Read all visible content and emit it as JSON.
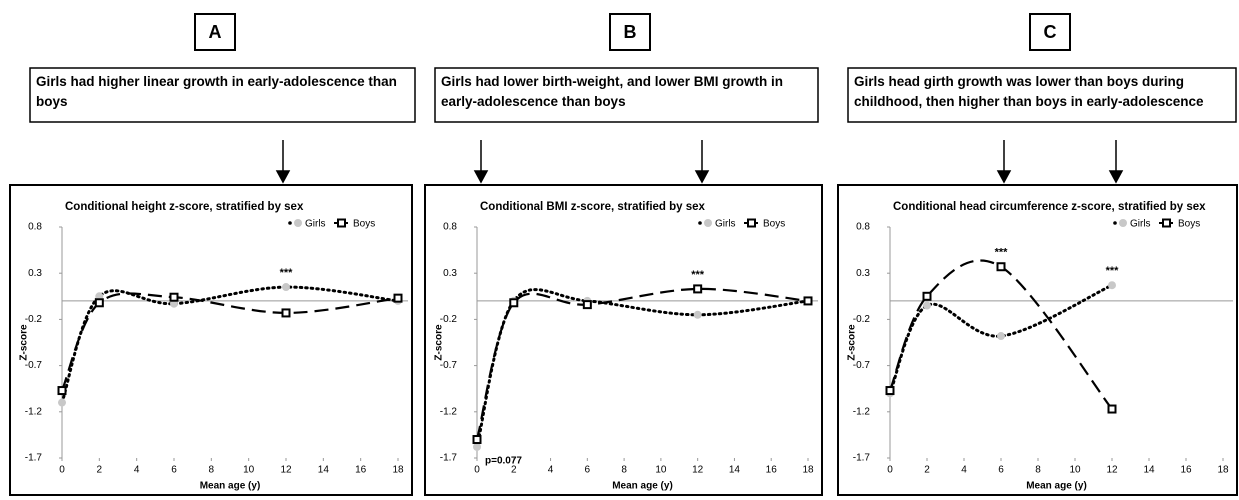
{
  "chart_data": [
    {
      "type": "line",
      "panel": "A",
      "finding": "Girls had higher linear growth in early-adolescence than boys",
      "title": "Conditional height z-score, stratified by sex",
      "xlabel": "Mean age (y)",
      "ylabel": "Z-score",
      "x": [
        0,
        2,
        6,
        12,
        18
      ],
      "series": [
        {
          "name": "Girls",
          "color": "#000000",
          "values": [
            -1.1,
            0.05,
            -0.03,
            0.15,
            0.0
          ]
        },
        {
          "name": "Boys",
          "color": "#000000",
          "values": [
            -0.97,
            -0.02,
            0.04,
            -0.13,
            0.03
          ]
        }
      ],
      "annotations": [
        {
          "text": "***",
          "x": 12
        }
      ],
      "xlim": [
        0,
        18
      ],
      "xticks": [
        0,
        2,
        4,
        6,
        8,
        10,
        12,
        14,
        16,
        18
      ],
      "ylim": [
        -1.7,
        0.8
      ],
      "yticks": [
        -1.7,
        -1.2,
        -0.7,
        -0.2,
        0.3,
        0.8
      ]
    },
    {
      "type": "line",
      "panel": "B",
      "finding": "Girls had lower birth-weight, and lower BMI growth in early-adolescence than boys",
      "title": "Conditional BMI z-score, stratified by sex",
      "xlabel": "Mean age (y)",
      "ylabel": "Z-score",
      "x": [
        0,
        2,
        6,
        12,
        18
      ],
      "series": [
        {
          "name": "Girls",
          "color": "#000000",
          "values": [
            -1.58,
            0.0,
            0.0,
            -0.15,
            0.0
          ]
        },
        {
          "name": "Boys",
          "color": "#000000",
          "values": [
            -1.5,
            -0.02,
            -0.04,
            0.13,
            0.0
          ]
        }
      ],
      "annotations": [
        {
          "text": "***",
          "x": 12
        },
        {
          "text": "p=0.077",
          "x": 0
        }
      ],
      "xlim": [
        0,
        18
      ],
      "xticks": [
        0,
        2,
        4,
        6,
        8,
        10,
        12,
        14,
        16,
        18
      ],
      "ylim": [
        -1.7,
        0.8
      ],
      "yticks": [
        -1.7,
        -1.2,
        -0.7,
        -0.2,
        0.3,
        0.8
      ]
    },
    {
      "type": "line",
      "panel": "C",
      "finding": "Girls head girth growth was lower than boys during childhood, then higher than boys in early-adolescence",
      "title": "Conditional head circumference z-score, stratified by sex",
      "xlabel": "Mean age (y)",
      "ylabel": "Z-score",
      "x": [
        0,
        2,
        6,
        12
      ],
      "series": [
        {
          "name": "Girls",
          "color": "#000000",
          "values": [
            -1.0,
            -0.05,
            -0.38,
            0.17
          ]
        },
        {
          "name": "Boys",
          "color": "#000000",
          "values": [
            -0.97,
            0.05,
            0.37,
            -1.17
          ]
        }
      ],
      "annotations": [
        {
          "text": "***",
          "x": 6
        },
        {
          "text": "***",
          "x": 12
        }
      ],
      "xlim": [
        0,
        18
      ],
      "xticks": [
        0,
        2,
        4,
        6,
        8,
        10,
        12,
        14,
        16,
        18
      ],
      "ylim": [
        -1.7,
        0.8
      ],
      "yticks": [
        -1.7,
        -1.2,
        -0.7,
        -0.2,
        0.3,
        0.8
      ]
    }
  ]
}
